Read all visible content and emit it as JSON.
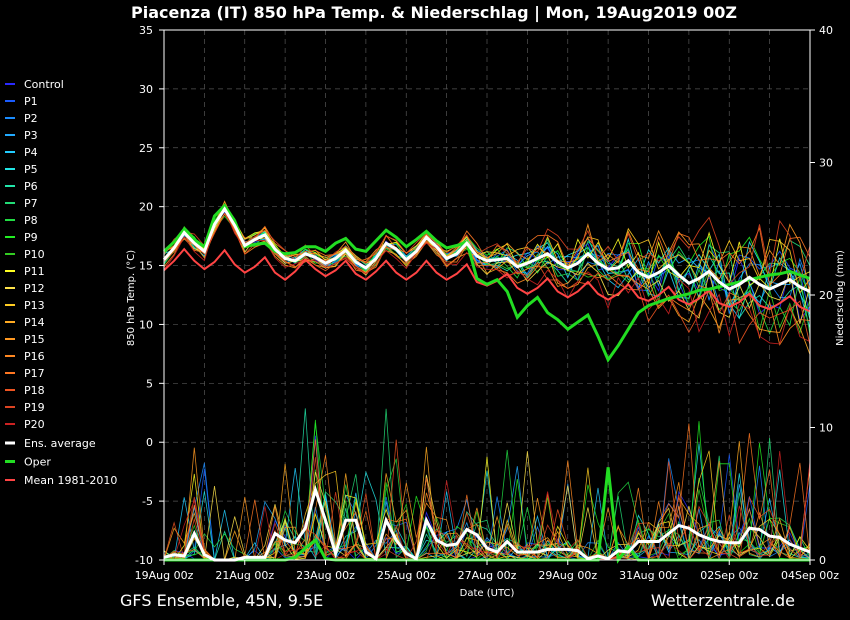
{
  "chart_data": {
    "type": "line",
    "title": "Piacenza  (IT)  850 hPa Temp. & Niederschlag | Mon, 19Aug2019 00Z",
    "xlabel": "Date (UTC)",
    "ylabel_left": "850 hPa Temp. (°C)",
    "ylabel_right": "Niederschlag (mm)",
    "ylim_left": [
      -10,
      35
    ],
    "ylim_right": [
      0,
      40
    ],
    "yticks_left": [
      "35",
      "30",
      "25",
      "20",
      "15",
      "10",
      "5",
      "0",
      "-5",
      "-10"
    ],
    "yticks_right": [
      "40",
      "30",
      "20",
      "10",
      "0"
    ],
    "x_tick_labels": [
      "19Aug 00z",
      "21Aug 00z",
      "23Aug 00z",
      "25Aug 00z",
      "27Aug 00z",
      "29Aug 00z",
      "31Aug 00z",
      "02Sep 00z",
      "04Sep 00z"
    ],
    "x_step_hours": 6,
    "x_points": 65,
    "grid": true,
    "legend_position": "left",
    "temperature_series": [
      {
        "name": "Ens. average",
        "color": "#ffffff",
        "width": 3,
        "values": [
          15.5,
          16.5,
          17.8,
          16.9,
          16.2,
          18.5,
          19.8,
          18.4,
          16.7,
          17.2,
          17.6,
          16.4,
          15.6,
          15.4,
          16.0,
          15.7,
          15.2,
          15.6,
          16.3,
          15.3,
          14.8,
          15.6,
          16.9,
          16.4,
          15.5,
          16.2,
          17.4,
          16.6,
          15.6,
          16.0,
          16.9,
          15.8,
          15.4,
          15.5,
          15.6,
          14.9,
          15.2,
          15.6,
          16.0,
          15.3,
          14.8,
          15.2,
          16.0,
          15.2,
          14.7,
          14.8,
          15.4,
          14.4,
          14.0,
          14.4,
          15.0,
          14.2,
          13.5,
          13.9,
          14.5,
          13.6,
          13.0,
          13.4,
          14.0,
          13.4,
          13.0,
          13.4,
          13.8,
          13.2,
          12.8
        ]
      },
      {
        "name": "Oper",
        "color": "#22dd22",
        "width": 3,
        "values": [
          16.2,
          17.0,
          18.1,
          17.2,
          16.6,
          19.2,
          20.1,
          18.8,
          16.6,
          16.8,
          16.9,
          16.2,
          16.0,
          16.1,
          16.6,
          16.6,
          16.2,
          16.9,
          17.3,
          16.4,
          16.2,
          17.1,
          18.0,
          17.4,
          16.6,
          17.2,
          17.9,
          17.1,
          16.5,
          16.7,
          17.0,
          13.9,
          13.4,
          13.8,
          12.8,
          10.6,
          11.6,
          12.3,
          11.0,
          10.4,
          9.6,
          10.2,
          10.8,
          9.0,
          7.0,
          8.2,
          9.6,
          11.0,
          11.6,
          11.9,
          12.2,
          12.4,
          12.6,
          12.9,
          13.0,
          13.2,
          13.4,
          13.6,
          13.8,
          14.0,
          14.2,
          14.3,
          14.5,
          14.2,
          13.9
        ]
      },
      {
        "name": "Mean 1981-2010",
        "color": "#ff4444",
        "width": 2,
        "values": [
          14.6,
          15.4,
          16.4,
          15.4,
          14.7,
          15.3,
          16.3,
          15.1,
          14.4,
          14.9,
          15.7,
          14.4,
          13.8,
          14.5,
          15.5,
          14.7,
          14.1,
          14.6,
          15.4,
          14.3,
          13.8,
          14.5,
          15.4,
          14.4,
          13.8,
          14.4,
          15.4,
          14.4,
          13.8,
          14.3,
          15.1,
          13.6,
          13.3,
          13.7,
          14.3,
          13.1,
          12.6,
          13.1,
          13.9,
          12.8,
          12.3,
          12.8,
          13.6,
          12.6,
          12.1,
          12.6,
          13.4,
          12.3,
          12.0,
          12.5,
          13.2,
          12.1,
          11.7,
          12.2,
          12.9,
          11.8,
          11.5,
          11.9,
          12.6,
          11.6,
          11.3,
          11.8,
          12.4,
          11.5,
          11.1
        ]
      }
    ],
    "precip_series": [
      {
        "name": "Ens. average",
        "color": "#ffffff",
        "width": 3,
        "values": [
          0.2,
          0.4,
          0.3,
          2.0,
          0.4,
          0.0,
          0.0,
          0.0,
          0.2,
          0.2,
          0.2,
          2.0,
          1.5,
          1.3,
          2.4,
          5.3,
          3.0,
          0.5,
          3.0,
          3.0,
          0.6,
          0.1,
          3.0,
          1.5,
          0.5,
          0.1,
          3.0,
          1.5,
          1.1,
          1.2,
          2.3,
          1.9,
          0.9,
          0.6,
          1.4,
          0.6,
          0.6,
          0.6,
          0.8,
          0.8,
          0.8,
          0.7,
          0.1,
          0.3,
          0.1,
          0.7,
          0.6,
          1.4,
          1.4,
          1.4,
          2.0,
          2.6,
          2.4,
          1.9,
          1.6,
          1.4,
          1.3,
          1.3,
          2.4,
          2.3,
          1.8,
          1.7,
          1.2,
          0.9,
          0.6
        ]
      },
      {
        "name": "Oper",
        "color": "#22dd22",
        "width": 3,
        "values": [
          0,
          0,
          0,
          0,
          0,
          0,
          0,
          0,
          0,
          0,
          0,
          0,
          0,
          0.2,
          0.9,
          1.5,
          0.1,
          0,
          0,
          0,
          0,
          0,
          0,
          0,
          0,
          0,
          0,
          0,
          0,
          0,
          0,
          0,
          0,
          0,
          0,
          0,
          0,
          0,
          0,
          0,
          0,
          0,
          0,
          0,
          7.0,
          0,
          1.0,
          0,
          0,
          0,
          0,
          0,
          0,
          0,
          0,
          0,
          0,
          0,
          0,
          0,
          0,
          0,
          0,
          0,
          0
        ]
      }
    ],
    "members": [
      "Control",
      "P1",
      "P2",
      "P3",
      "P4",
      "P5",
      "P6",
      "P7",
      "P8",
      "P9",
      "P10",
      "P11",
      "P12",
      "P13",
      "P14",
      "P15",
      "P16",
      "P17",
      "P18",
      "P19",
      "P20"
    ],
    "member_colors": [
      "#2a2aff",
      "#1a5cff",
      "#1a8cff",
      "#22aaff",
      "#22ccff",
      "#22e6e6",
      "#22e6aa",
      "#22dd77",
      "#22dd44",
      "#22ee22",
      "#33cc22",
      "#ffff22",
      "#ffe44a",
      "#ffcc22",
      "#ffaa22",
      "#ff9922",
      "#ff8822",
      "#ff7722",
      "#ee5522",
      "#dd4422",
      "#cc2222"
    ],
    "legend_entries": [
      {
        "label": "Control",
        "color": "#2a2aff"
      },
      {
        "label": "P1",
        "color": "#1a5cff"
      },
      {
        "label": "P2",
        "color": "#1a8cff"
      },
      {
        "label": "P3",
        "color": "#22aaff"
      },
      {
        "label": "P4",
        "color": "#22ccff"
      },
      {
        "label": "P5",
        "color": "#22e6e6"
      },
      {
        "label": "P6",
        "color": "#22e6aa"
      },
      {
        "label": "P7",
        "color": "#22dd77"
      },
      {
        "label": "P8",
        "color": "#22dd44"
      },
      {
        "label": "P9",
        "color": "#22ee22"
      },
      {
        "label": "P10",
        "color": "#33cc22"
      },
      {
        "label": "P11",
        "color": "#ffff22"
      },
      {
        "label": "P12",
        "color": "#ffe44a"
      },
      {
        "label": "P13",
        "color": "#ffcc22"
      },
      {
        "label": "P14",
        "color": "#ffaa22"
      },
      {
        "label": "P15",
        "color": "#ff9922"
      },
      {
        "label": "P16",
        "color": "#ff8822"
      },
      {
        "label": "P17",
        "color": "#ff7722"
      },
      {
        "label": "P18",
        "color": "#ee5522"
      },
      {
        "label": "P19",
        "color": "#dd4422"
      },
      {
        "label": "P20",
        "color": "#cc2222"
      },
      {
        "label": "Ens. average",
        "color": "#ffffff"
      },
      {
        "label": "Oper",
        "color": "#22dd22"
      },
      {
        "label": "Mean 1981-2010",
        "color": "#ff4444"
      }
    ]
  },
  "footer": {
    "left": "GFS Ensemble, 45N, 9.5E",
    "right": "Wetterzentrale.de"
  }
}
